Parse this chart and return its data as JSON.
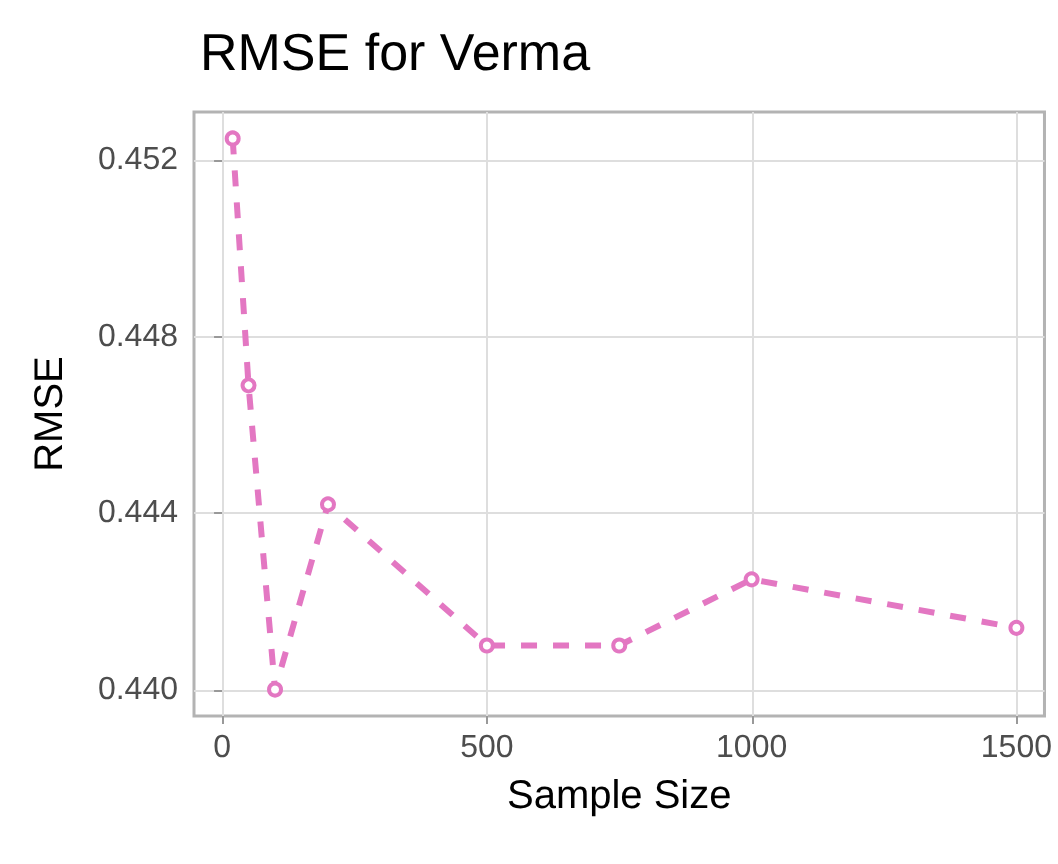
{
  "chart_data": {
    "type": "line",
    "title": "RMSE for Verma",
    "xlabel": "Sample Size",
    "ylabel": "RMSE",
    "x": [
      20,
      50,
      100,
      200,
      500,
      750,
      1000,
      1500
    ],
    "series": [
      {
        "color": "#e377c2",
        "values": [
          0.4525,
          0.4469,
          0.44,
          0.4442,
          0.441,
          0.441,
          0.4425,
          0.4414
        ]
      }
    ],
    "xlim": [
      -53,
      1553
    ],
    "xticks": [
      0,
      500,
      1000,
      1500
    ],
    "ylim": [
      0.4394,
      0.4531
    ],
    "yticks": [
      {
        "value": 0.44,
        "label": "0.440"
      },
      {
        "value": 0.444,
        "label": "0.444"
      },
      {
        "value": 0.448,
        "label": "0.448"
      },
      {
        "value": 0.452,
        "label": "0.452"
      }
    ],
    "grid": true,
    "marker": "circle",
    "line_style": "dashed"
  }
}
